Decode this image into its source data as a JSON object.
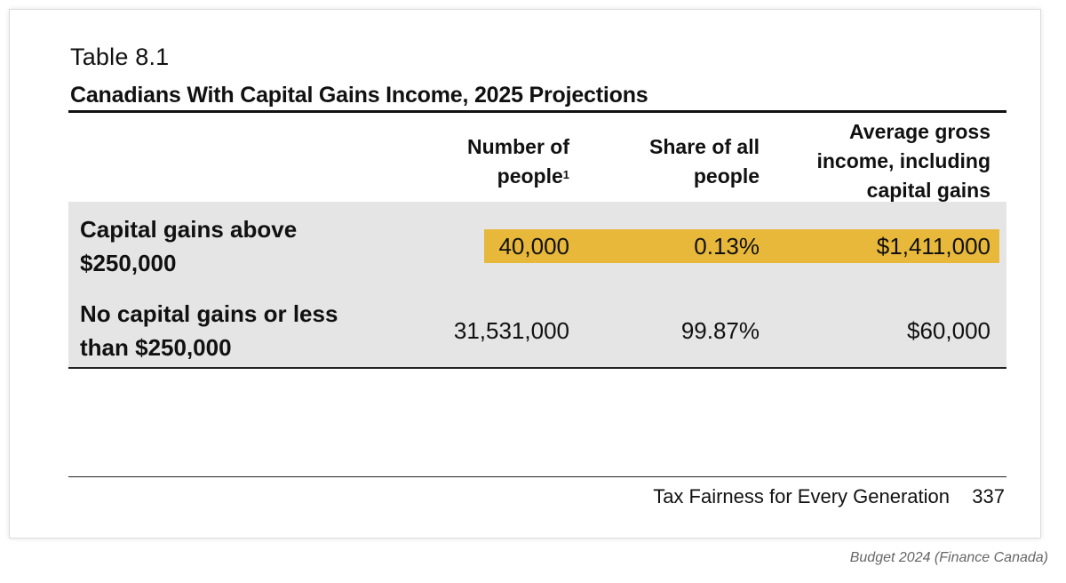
{
  "table": {
    "number": "Table 8.1",
    "title": "Canadians With Capital Gains Income, 2025 Projections",
    "columns": [
      {
        "line1": "Number of",
        "line2": "people",
        "footnote": "1"
      },
      {
        "line1": "Share of all",
        "line2": "people"
      },
      {
        "line1": "Average gross",
        "line2": "income, including",
        "line3": "capital gains"
      }
    ],
    "rows": [
      {
        "label_line1": "Capital gains above",
        "label_line2": "$250,000",
        "number": "40,000",
        "share": "0.13%",
        "income": "$1,411,000"
      },
      {
        "label_line1": "No capital gains or less",
        "label_line2": "than $250,000",
        "number": "31,531,000",
        "share": "99.87%",
        "income": "$60,000"
      }
    ],
    "colors": {
      "row_shade": "#e5e5e5",
      "highlight": "#e8b83a"
    }
  },
  "footer": {
    "text": "Tax Fairness for Every Generation",
    "page": "337"
  },
  "credit": "Budget 2024 (Finance Canada)"
}
